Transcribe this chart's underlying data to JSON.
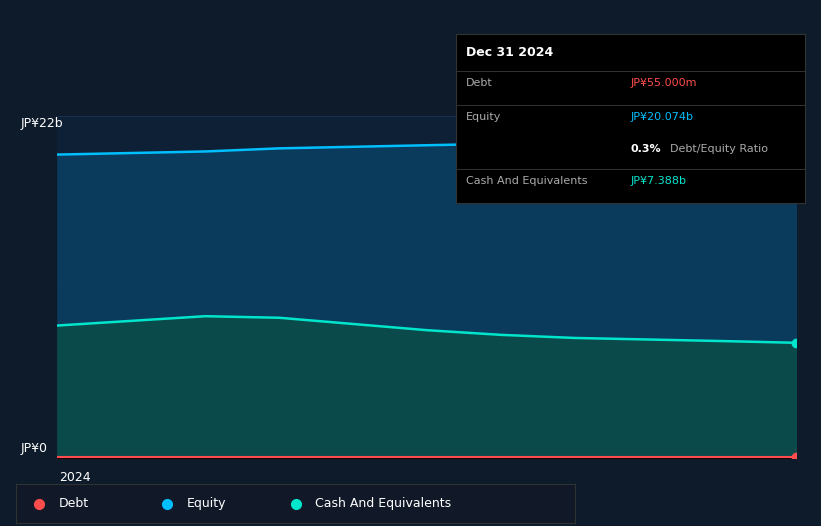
{
  "bg_color": "#0d1b2a",
  "plot_bg_color": "#0d2035",
  "ylabel_top": "JP¥22b",
  "ylabel_bottom": "JP¥0",
  "xlabel": "2024",
  "tooltip_title": "Dec 31 2024",
  "tooltip_rows": [
    {
      "label": "Debt",
      "value": "JP¥55.000m",
      "value_color": "#ff4d4d"
    },
    {
      "label": "Equity",
      "value": "JP¥20.074b",
      "value_color": "#00bfff"
    },
    {
      "label": "Cash And Equivalents",
      "value": "JP¥7.388b",
      "value_color": "#00e5cc"
    }
  ],
  "equity_line_color": "#00bfff",
  "equity_fill_color": "#0a3a5c",
  "cash_line_color": "#00e5cc",
  "cash_fill_color": "#0a4a4a",
  "debt_line_color": "#ff4d4d",
  "debt_fill_color": "#1a0505",
  "legend_bg": "#111827",
  "grid_color": "#1e3a5f",
  "x_points": [
    0,
    0.1,
    0.2,
    0.3,
    0.4,
    0.5,
    0.6,
    0.7,
    0.8,
    0.9,
    1.0
  ],
  "equity_y": [
    19.5,
    19.6,
    19.7,
    19.9,
    20.0,
    20.1,
    20.2,
    20.3,
    20.4,
    20.5,
    20.074
  ],
  "cash_y": [
    8.5,
    8.8,
    9.1,
    9.0,
    8.6,
    8.2,
    7.9,
    7.7,
    7.6,
    7.5,
    7.388
  ],
  "debt_y": [
    0.055,
    0.055,
    0.055,
    0.055,
    0.055,
    0.055,
    0.055,
    0.055,
    0.055,
    0.055,
    0.055
  ],
  "ymax": 22,
  "ymin": 0,
  "marker_color": "#00bfff",
  "marker_color_cash": "#00e5cc",
  "marker_color_debt": "#ff4d4d"
}
